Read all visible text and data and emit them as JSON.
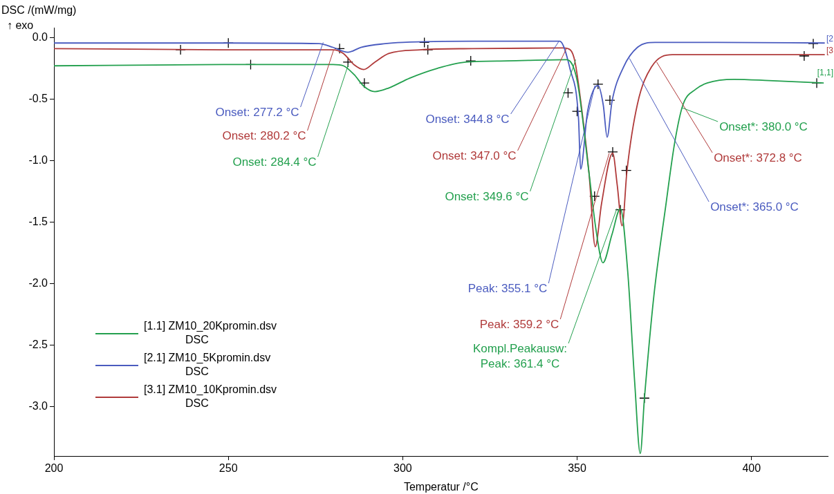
{
  "chart_data": {
    "type": "line",
    "ylabel": "DSC /(mW/mg)",
    "xlabel": "Temperatur /°C",
    "xlim": [
      200,
      422
    ],
    "ylim": [
      -3.4,
      0.08
    ],
    "xticks": [
      200,
      250,
      300,
      350,
      400
    ],
    "yticks": [
      {
        "value": 0,
        "label": "0.0"
      },
      {
        "value": -0.5,
        "label": "-0.5"
      },
      {
        "value": -1,
        "label": "-1.0"
      },
      {
        "value": -1.5,
        "label": "-1.5"
      },
      {
        "value": -2,
        "label": "-2.0"
      },
      {
        "value": -2.5,
        "label": "-2.5"
      },
      {
        "value": -3,
        "label": "-3.0"
      }
    ],
    "grid": false,
    "legend": "bottom left",
    "line_style": "solid",
    "series": [
      {
        "name": "[1.1] ZM10_20Kpromin.dsv\nDSC",
        "color": "#23a04e",
        "x": [
          200,
          250,
          280,
          283,
          286,
          289,
          292,
          296,
          302,
          310,
          318,
          330,
          347,
          350,
          353.4,
          355.4,
          357.4,
          360,
          362.4,
          364.5,
          366.5,
          368.1,
          369.3,
          372,
          375.3,
          378,
          380.3,
          384,
          387.3,
          395,
          405,
          420.7
        ],
        "values": [
          -0.23,
          -0.22,
          -0.22,
          -0.23,
          -0.3,
          -0.4,
          -0.44,
          -0.41,
          -0.33,
          -0.25,
          -0.2,
          -0.19,
          -0.18,
          -0.35,
          -1.1,
          -1.56,
          -1.83,
          -1.6,
          -1.39,
          -1.9,
          -2.8,
          -3.38,
          -2.93,
          -2.1,
          -1.39,
          -0.85,
          -0.55,
          -0.42,
          -0.37,
          -0.34,
          -0.35,
          -0.37
        ]
      },
      {
        "name": "[2.1] ZM10_5Kpromin.dsv\nDSC",
        "color": "#4a5bbf",
        "x": [
          200,
          250,
          276,
          280,
          284.3,
          288,
          295,
          300,
          320,
          345,
          348,
          350.4,
          351,
          353,
          356,
          357.5,
          358.6,
          360,
          363.3,
          367.3,
          372.3,
          390,
          421
        ],
        "values": [
          -0.045,
          -0.045,
          -0.05,
          -0.08,
          -0.12,
          -0.08,
          -0.05,
          -0.04,
          -0.03,
          -0.03,
          -0.26,
          -0.66,
          -1.07,
          -0.6,
          -0.39,
          -0.55,
          -0.81,
          -0.52,
          -0.24,
          -0.08,
          -0.04,
          -0.04,
          -0.045
        ]
      },
      {
        "name": "[3.1] ZM10_10Kpromin.dsv\nDSC",
        "color": "#b03a3a",
        "x": [
          200,
          250,
          280,
          283,
          286,
          288.8,
          292,
          296,
          305,
          320,
          346,
          348,
          349.4,
          351.4,
          353.4,
          355.2,
          357,
          360.2,
          361.5,
          362.9,
          364.3,
          367.3,
          371.3,
          377.3,
          390,
          413,
          421
        ],
        "values": [
          -0.09,
          -0.1,
          -0.1,
          -0.13,
          -0.22,
          -0.26,
          -0.2,
          -0.13,
          -0.1,
          -0.09,
          -0.085,
          -0.1,
          -0.2,
          -0.6,
          -1.1,
          -1.7,
          -1.35,
          -0.94,
          -1.2,
          -1.53,
          -1.08,
          -0.54,
          -0.24,
          -0.14,
          -0.14,
          -0.14,
          -0.14
        ]
      },
      {
        "type": "scatter",
        "marker": "cross",
        "color": "#000000",
        "x": [
          236.3,
          250,
          256.4,
          281.9,
          284.3,
          289,
          306.2,
          307.2,
          319.5,
          347.4,
          350,
          356,
          359.4,
          355,
          360.2,
          364.1,
          362.4,
          369.3,
          417.7,
          415.1,
          418.7
        ],
        "values": [
          -0.1,
          -0.045,
          -0.22,
          -0.09,
          -0.2,
          -0.37,
          -0.04,
          -0.1,
          -0.19,
          -0.45,
          -0.6,
          -0.38,
          -0.51,
          -1.29,
          -0.93,
          -1.08,
          -1.4,
          -2.93,
          -0.05,
          -0.15,
          -0.37
        ]
      }
    ],
    "annotations": [
      {
        "text": "Onset: 277.2 °C",
        "x": 277.2,
        "y": -0.04
      },
      {
        "text": "Onset: 280.2 °C",
        "x": 280.2,
        "y": -0.1
      },
      {
        "text": "Onset: 284.4 °C",
        "x": 284.4,
        "y": -0.22
      },
      {
        "text": "Onset: 344.8 °C",
        "x": 344.8,
        "y": -0.03
      },
      {
        "text": "Onset: 347.0 °C",
        "x": 347.0,
        "y": -0.085
      },
      {
        "text": "Onset: 349.6 °C",
        "x": 349.6,
        "y": -0.18
      },
      {
        "text": "Peak: 355.1 °C",
        "x": 355.1,
        "y": -0.39
      },
      {
        "text": "Peak: 359.2 °C",
        "x": 359.2,
        "y": -0.94
      },
      {
        "text": "Kompl.Peakausw:\nPeak: 361.4 °C",
        "x": 361.4,
        "y": -1.39
      },
      {
        "text": "Onset*: 365.0 °C",
        "x": 365.0,
        "y": -0.17
      },
      {
        "text": "Onset*: 372.8 °C",
        "x": 372.8,
        "y": -0.2
      },
      {
        "text": "Onset*: 380.0 °C",
        "x": 380.0,
        "y": -0.57
      },
      "↑ exo",
      "[2",
      "[3",
      "[1,1]"
    ]
  }
}
